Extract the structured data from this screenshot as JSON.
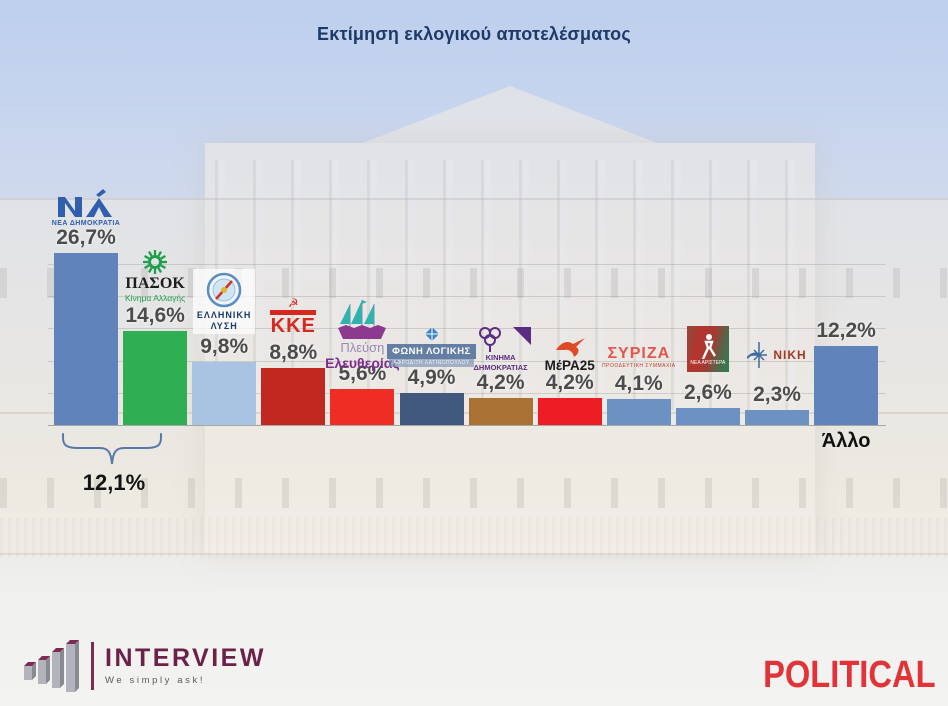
{
  "title": "Εκτίμηση εκλογικού αποτελέσματος",
  "chart_data": {
    "type": "bar",
    "title": "Εκτίμηση εκλογικού αποτελέσματος",
    "unit": "percent",
    "categories": [
      "ΝΕΑ ΔΗΜΟΚΡΑΤΙΑ",
      "ΠΑΣΟΚ - Κίνημα Αλλαγής",
      "ΕΛΛΗΝΙΚΗ ΛΥΣΗ",
      "ΚΚΕ",
      "ΠΛΕΥΣΗ ΕΛΕΥΘΕΡΙΑΣ",
      "ΦΩΝΗ ΛΟΓΙΚΗΣ",
      "ΚΙΝΗΜΑ ΔΗΜΟΚΡΑΤΙΑΣ",
      "ΜέΡΑ25",
      "ΣΥΡΙΖΑ",
      "ΝΕΑ ΑΡΙΣΤΕΡΑ",
      "ΝΙΚΗ",
      "Άλλο"
    ],
    "values": [
      26.7,
      14.6,
      9.8,
      8.8,
      5.6,
      4.9,
      4.2,
      4.2,
      4.1,
      2.6,
      2.3,
      12.2
    ],
    "value_labels": [
      "26,7%",
      "14,6%",
      "9,8%",
      "8,8%",
      "5,6%",
      "4,9%",
      "4,2%",
      "4,2%",
      "4,1%",
      "2,6%",
      "2,3%",
      "12,2%"
    ],
    "bar_colors": [
      "#5f83ba",
      "#2fae53",
      "#a9c3e3",
      "#c1281f",
      "#ee2e24",
      "#41597f",
      "#aa7135",
      "#ee1c24",
      "#6c92c3",
      "#6c92c3",
      "#6c92c3",
      "#5f83ba"
    ],
    "ylim": [
      0,
      30
    ],
    "gridline_step": 5,
    "grid": true,
    "legend": false,
    "annotation": {
      "label": "12,1%",
      "spans_categories": [
        "ΝΕΑ ΔΗΜΟΚΡΑΤΙΑ",
        "ΠΑΣΟΚ - Κίνημα Αλλαγής"
      ]
    },
    "below_axis_label": {
      "index": 11,
      "text": "Άλλο"
    }
  },
  "parties": [
    {
      "id": "nea-dimokratia",
      "logo": {
        "caption": "ΝΕΑ ΔΗΜΟΚΡΑΤΙΑ"
      }
    },
    {
      "id": "pasok",
      "logo": {
        "title": "ΠΑΣΟΚ",
        "sub": "Κίνημα Αλλαγής"
      }
    },
    {
      "id": "elliniki-lysi",
      "logo": {
        "line1": "ΕΛΛΗΝΙΚΗ",
        "line2": "ΛΥΣΗ"
      }
    },
    {
      "id": "kke",
      "logo": {
        "title": "KKE"
      }
    },
    {
      "id": "plefsi-eleftherias",
      "logo": {
        "line1": "Πλεύση",
        "line2": "Ελευθερίας"
      }
    },
    {
      "id": "foni-logikis",
      "logo": {
        "title": "ΦΩΝΗ ΛΟΓΙΚΗΣ",
        "sub": "ΑΦΡΟΔΙΤΗ ΛΑΤΙΝΟΠΟΥΛΟΥ"
      }
    },
    {
      "id": "kinima-dimokratias",
      "logo": {
        "line1": "ΚΙΝΗΜΑ",
        "line2": "ΔΗΜΟΚΡΑΤΙΑΣ"
      }
    },
    {
      "id": "mera25",
      "logo": {
        "title": "ΜέΡΑ25"
      }
    },
    {
      "id": "syriza",
      "logo": {
        "title": "ΣΥΡΙΖΑ",
        "sub": "ΠΡΟΟΔΕΥΤΙΚΗ ΣΥΜΜΑΧΙΑ"
      }
    },
    {
      "id": "nea-aristera",
      "logo": {
        "caption": "ΝΕΑ ΑΡΙΣΤΕΡΑ"
      }
    },
    {
      "id": "niki",
      "logo": {
        "title": "ΝΙΚΗ"
      }
    },
    {
      "id": "allo",
      "logo": null
    }
  ],
  "gap_annotation": {
    "label": "12,1%"
  },
  "footer": {
    "interview": {
      "name": "INTERVIEW",
      "tagline": "We simply ask!"
    },
    "political": {
      "name": "POLITICAL"
    }
  },
  "colors": {
    "title": "#1e3a66",
    "value_label": "#4c4c4c",
    "annotation": "#141414",
    "brace": "#5878a8",
    "interview_brand": "#6b2148",
    "political_brand": "#e23338"
  }
}
